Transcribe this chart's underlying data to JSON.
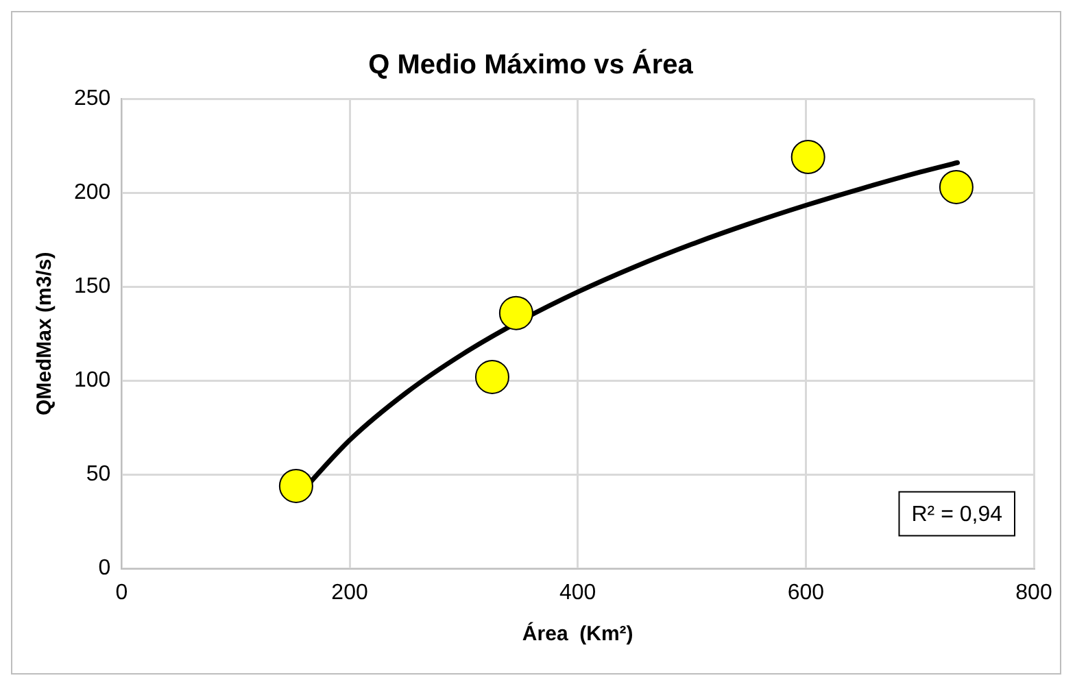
{
  "chart_data": {
    "type": "scatter",
    "title": "Q Medio Máximo vs Área",
    "xlabel": "Área  (Km²)",
    "ylabel": "QMedMax (m3/s)",
    "series": [
      {
        "type": "scatter",
        "marker": "circle",
        "color": "#ffff00",
        "x": [
          153,
          325,
          346,
          602,
          732
        ],
        "values": [
          44,
          102,
          136,
          219,
          203
        ]
      },
      {
        "type": "line",
        "marker": "none",
        "line_style": "solid",
        "color": "#000000",
        "x": [
          153,
          200,
          250,
          300,
          350,
          400,
          450,
          500,
          550,
          600,
          650,
          700,
          733
        ],
        "values": [
          37.6,
          68.4,
          93.8,
          114.5,
          132.0,
          147.2,
          160.6,
          172.6,
          183.4,
          193.3,
          202.4,
          210.9,
          216
        ]
      }
    ],
    "xlim": [
      0,
      800
    ],
    "xticks": [
      0,
      200,
      400,
      600,
      800
    ],
    "ylim": [
      0,
      250
    ],
    "yticks": [
      0,
      50,
      100,
      150,
      200,
      250
    ],
    "grid": true,
    "legend": false,
    "annotations": [
      "R² = 0,94"
    ]
  }
}
